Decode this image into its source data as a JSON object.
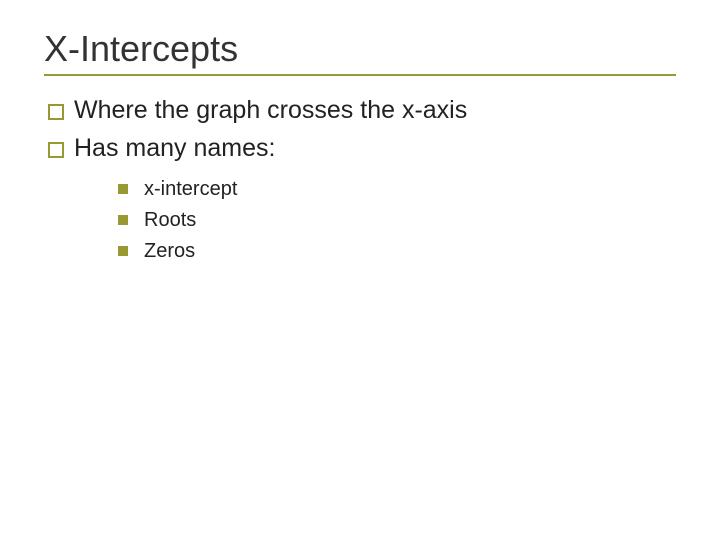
{
  "slide": {
    "title": "X-Intercepts",
    "title_color": "#333333",
    "title_fontsize": 36,
    "underline_color": "#999933",
    "bullets_level1": [
      {
        "text": "Where the graph crosses the x-axis"
      },
      {
        "text": "Has many names:"
      }
    ],
    "bullets_level2": [
      {
        "text": "x-intercept"
      },
      {
        "text": "Roots"
      },
      {
        "text": "Zeros"
      }
    ],
    "bullet_outline_color": "#999933",
    "bullet_fill_color": "#999933",
    "body_text_color": "#222222",
    "background_color": "#ffffff",
    "level1_fontsize": 25,
    "level2_fontsize": 20
  }
}
